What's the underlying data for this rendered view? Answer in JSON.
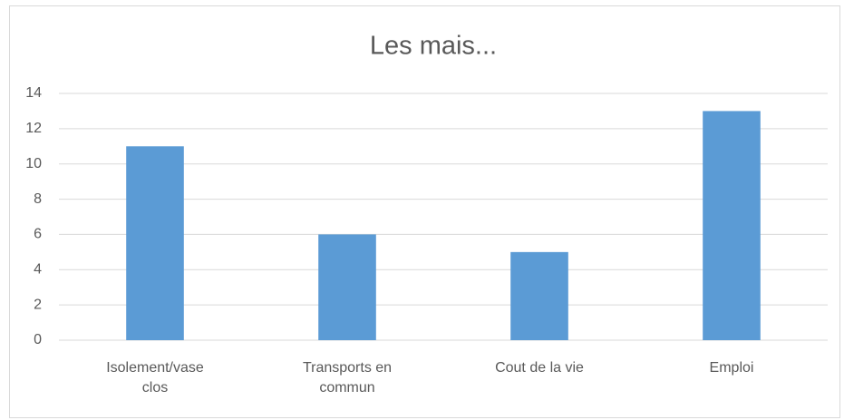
{
  "chart_data": {
    "type": "bar",
    "title": "Les mais...",
    "categories": [
      "Isolement/vase clos",
      "Transports en commun",
      "Cout de la vie",
      "Emploi"
    ],
    "values": [
      11,
      6,
      5,
      13
    ],
    "color": "#5b9bd5",
    "ylim": [
      0,
      14
    ],
    "yticks": [
      0,
      2,
      4,
      6,
      8,
      10,
      12,
      14
    ],
    "grid": true
  }
}
